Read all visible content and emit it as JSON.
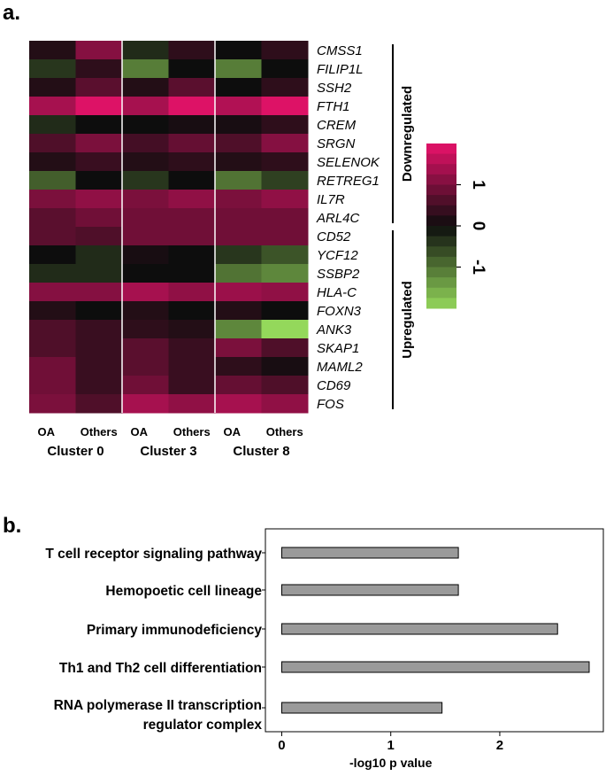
{
  "panel_a_label": "a.",
  "panel_b_label": "b.",
  "chart_data": [
    {
      "type": "heatmap",
      "columns": [
        "OA",
        "Others",
        "OA",
        "Others",
        "OA",
        "Others"
      ],
      "clusters": [
        "Cluster 0",
        "Cluster 3",
        "Cluster 8"
      ],
      "rows": [
        "CMSS1",
        "FILIP1L",
        "SSH2",
        "FTH1",
        "CREM",
        "SRGN",
        "SELENOK",
        "RETREG1",
        "IL7R",
        "ARL4C",
        "CD52",
        "YCF12",
        "SSBP2",
        "HLA-C",
        "FOXN3",
        "ANK3",
        "SKAP1",
        "MAML2",
        "CD69",
        "FOS"
      ],
      "values": [
        [
          0.2,
          1.1,
          -0.3,
          0.3,
          0.0,
          0.3
        ],
        [
          -0.4,
          0.3,
          -1.1,
          0.0,
          -1.1,
          0.0
        ],
        [
          0.2,
          0.7,
          0.2,
          0.7,
          0.0,
          0.3
        ],
        [
          1.4,
          1.9,
          1.4,
          1.9,
          1.5,
          1.9
        ],
        [
          -0.3,
          0.0,
          0.0,
          0.1,
          0.1,
          0.3
        ],
        [
          0.6,
          1.0,
          0.5,
          0.8,
          0.6,
          1.1
        ],
        [
          0.2,
          0.4,
          0.2,
          0.3,
          0.2,
          0.3
        ],
        [
          -0.8,
          0.0,
          -0.4,
          0.0,
          -1.0,
          -0.5
        ],
        [
          1.0,
          1.2,
          1.0,
          1.2,
          1.0,
          1.2
        ],
        [
          0.7,
          0.9,
          0.9,
          0.9,
          0.9,
          0.9
        ],
        [
          0.7,
          0.6,
          0.9,
          0.9,
          0.9,
          0.9
        ],
        [
          0.0,
          -0.3,
          0.1,
          0.0,
          -0.4,
          -0.7
        ],
        [
          -0.3,
          -0.3,
          0.0,
          0.0,
          -1.0,
          -1.2
        ],
        [
          1.1,
          1.1,
          1.4,
          1.2,
          1.3,
          1.2
        ],
        [
          0.2,
          0.0,
          0.2,
          0.0,
          0.2,
          0.0
        ],
        [
          0.6,
          0.4,
          0.3,
          0.2,
          -1.2,
          -2.0
        ],
        [
          0.6,
          0.4,
          0.7,
          0.4,
          1.0,
          0.6
        ],
        [
          0.9,
          0.4,
          0.7,
          0.4,
          0.3,
          0.1
        ],
        [
          0.9,
          0.4,
          0.9,
          0.4,
          0.8,
          0.6
        ],
        [
          1.0,
          0.6,
          1.4,
          1.2,
          1.4,
          1.2
        ]
      ],
      "groups": [
        {
          "label": "Downregulated",
          "from_row": 0,
          "to_row": 9
        },
        {
          "label": "Upregulated",
          "from_row": 10,
          "to_row": 19
        }
      ],
      "color_scale": {
        "range": [
          -2,
          2
        ],
        "ticks": [
          "1",
          "0",
          "-1"
        ],
        "low_color": "#94d85b",
        "mid_color": "#0d0d0d",
        "high_color": "#e8126b"
      }
    },
    {
      "type": "bar",
      "orientation": "horizontal",
      "categories": [
        "T cell receptor signaling pathway",
        "Hemopoetic cell lineage",
        "Primary immunodeficiency",
        "Th1 and Th2 cell differentiation",
        "RNA polymerase II transcription regulator complex"
      ],
      "category_lines": [
        [
          "T cell receptor signaling pathway"
        ],
        [
          "Hemopoetic cell lineage"
        ],
        [
          "Primary immunodeficiency"
        ],
        [
          "Th1 and Th2 cell differentiation"
        ],
        [
          "RNA polymerase II transcription",
          "regulator complex"
        ]
      ],
      "values": [
        1.62,
        1.62,
        2.53,
        2.82,
        1.47
      ],
      "xlabel": "-log10 p value",
      "xlim": [
        -0.15,
        2.95
      ],
      "xticks": [
        "0",
        "1",
        "2"
      ],
      "bar_color": "#9a9a9a"
    }
  ]
}
